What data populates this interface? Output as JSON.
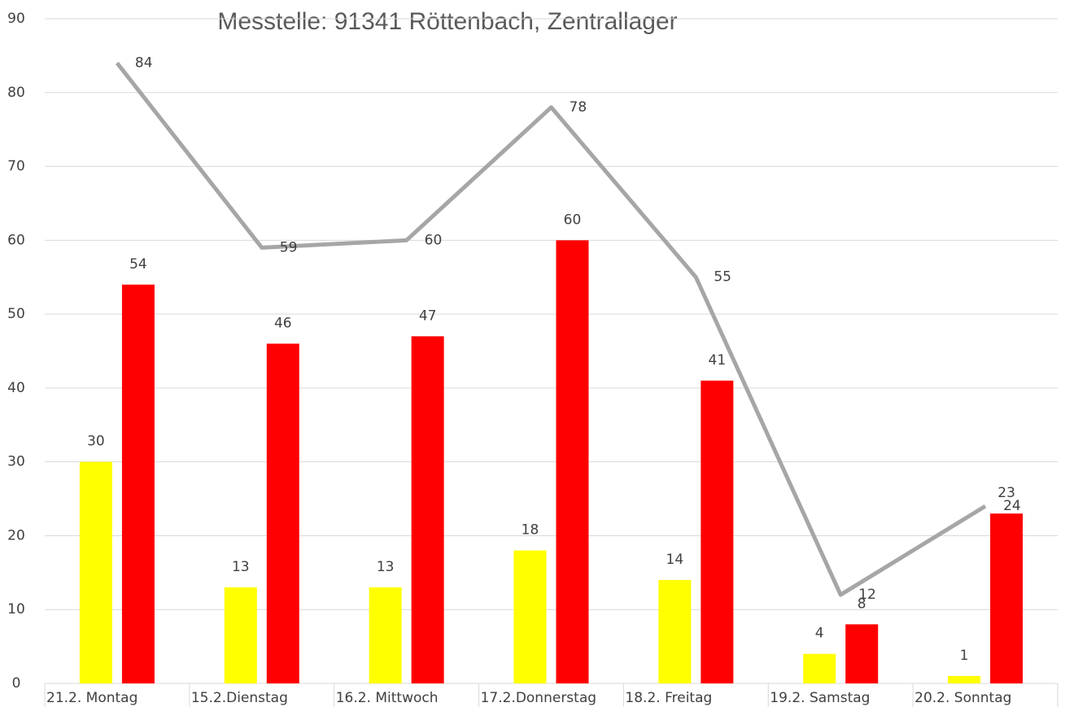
{
  "chart_data": {
    "type": "bar",
    "title": "Messtelle: 91341 Röttenbach, Zentrallager",
    "categories": [
      "21.2. Montag",
      "15.2.Dienstag",
      "16.2. Mittwoch",
      "17.2.Donnerstag",
      "18.2.  Freitag",
      "19.2. Samstag",
      "20.2.  Sonntag"
    ],
    "series": [
      {
        "color": "#ffff00",
        "values": [
          30,
          13,
          13,
          18,
          14,
          4,
          1
        ]
      },
      {
        "color": "#ff0000",
        "values": [
          54,
          46,
          47,
          60,
          41,
          8,
          23
        ]
      },
      {
        "type": "line",
        "color": "#a6a6a6",
        "values": [
          84,
          59,
          60,
          78,
          55,
          12,
          24
        ]
      }
    ],
    "ylim": [
      0,
      90
    ],
    "yticks": [
      0,
      10,
      20,
      30,
      40,
      50,
      60,
      70,
      80,
      90
    ],
    "grid": true
  }
}
